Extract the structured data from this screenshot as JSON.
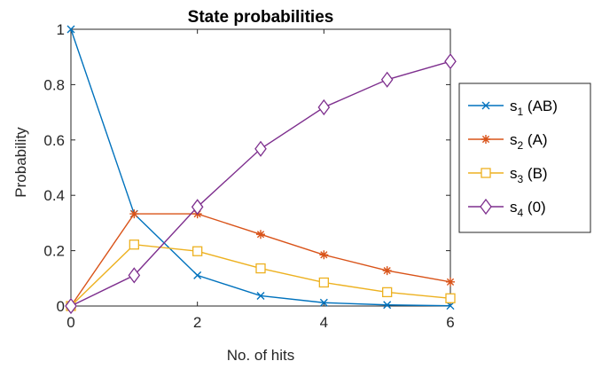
{
  "chart_data": {
    "type": "line",
    "title": "State probabilities",
    "xlabel": "No. of hits",
    "ylabel": "Probability",
    "xlim": [
      0,
      6
    ],
    "ylim": [
      0,
      1
    ],
    "xticks": [
      "0",
      "2",
      "4",
      "6"
    ],
    "yticks": [
      "0",
      "0.2",
      "0.4",
      "0.6",
      "0.8",
      "1"
    ],
    "grid": false,
    "legend_position": "right-outside",
    "x": [
      0,
      1,
      2,
      3,
      4,
      5,
      6
    ],
    "series": [
      {
        "name": "s",
        "sub": "1",
        "suffix": " (AB)",
        "color": "#0072BD",
        "marker": "x",
        "values": [
          1,
          0.333,
          0.111,
          0.037,
          0.012,
          0.004,
          0.001
        ]
      },
      {
        "name": "s",
        "sub": "2",
        "suffix": " (A)",
        "color": "#D95319",
        "marker": "asterisk",
        "values": [
          0,
          0.333,
          0.333,
          0.259,
          0.185,
          0.128,
          0.087
        ]
      },
      {
        "name": "s",
        "sub": "3",
        "suffix": " (B)",
        "color": "#EDB120",
        "marker": "square",
        "values": [
          0,
          0.222,
          0.198,
          0.136,
          0.085,
          0.05,
          0.028
        ]
      },
      {
        "name": "s",
        "sub": "4",
        "suffix": " (0)",
        "color": "#7E2F8E",
        "marker": "diamond",
        "values": [
          0,
          0.111,
          0.358,
          0.568,
          0.718,
          0.818,
          0.884
        ]
      }
    ]
  }
}
